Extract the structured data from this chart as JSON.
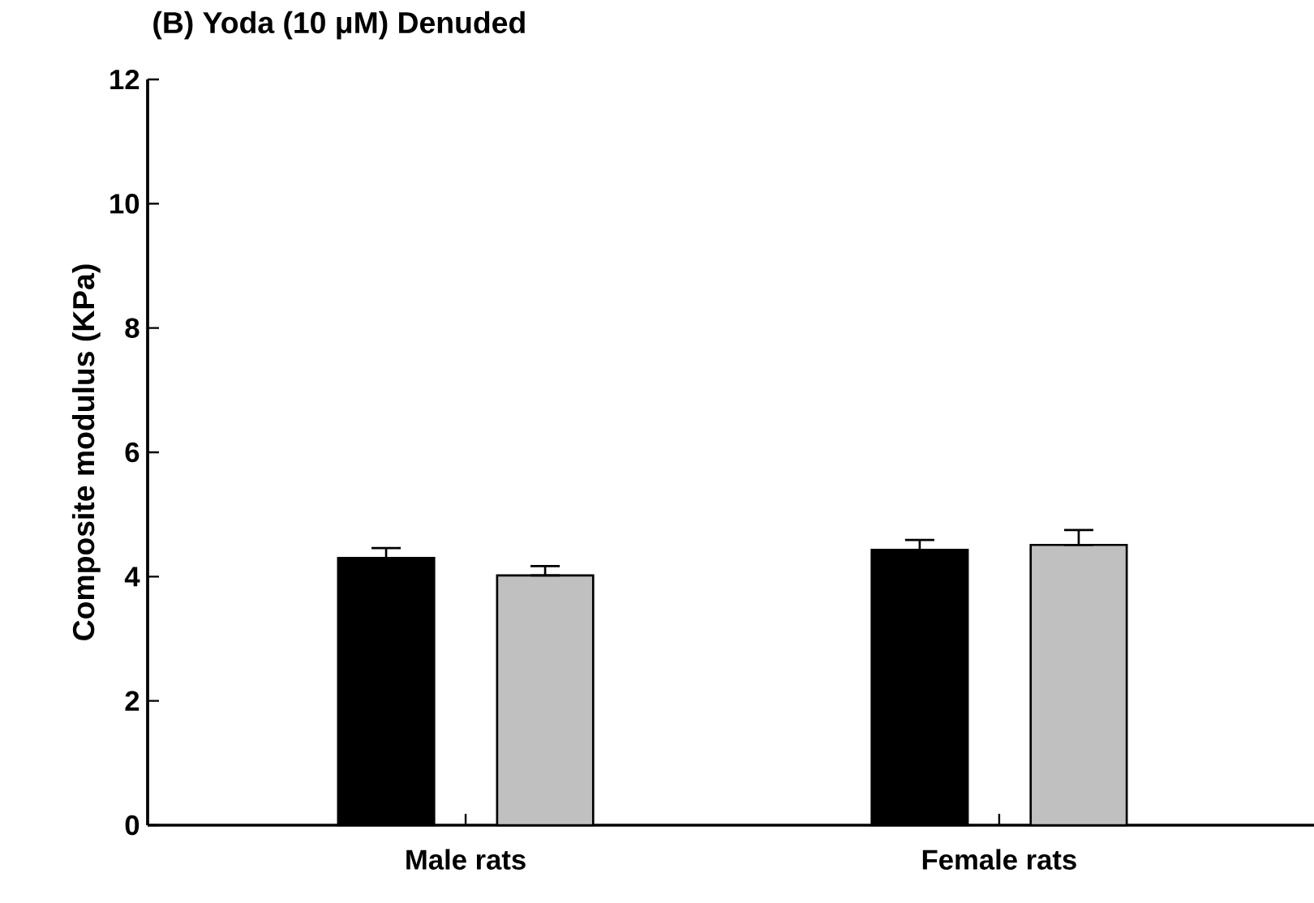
{
  "chart_data": {
    "type": "bar",
    "title": "(B) Yoda (10 μM) Denuded",
    "ylabel": "Composite modulus (KPa)",
    "categories": [
      "Male rats",
      "Female rats"
    ],
    "series": [
      {
        "color": "#000000",
        "values": [
          4.3,
          4.43
        ],
        "errors": [
          [
            4.3,
            4.46
          ],
          [
            4.43,
            4.59
          ]
        ]
      },
      {
        "color": "#c0c0c0",
        "values": [
          4.02,
          4.51
        ],
        "errors": [
          [
            4.02,
            4.17
          ],
          [
            4.51,
            4.75
          ]
        ]
      }
    ],
    "ylim": [
      0,
      12
    ],
    "yticks": [
      0,
      2,
      4,
      6,
      8,
      10,
      12
    ]
  }
}
